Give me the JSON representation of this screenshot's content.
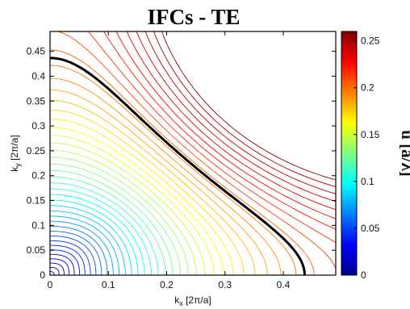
{
  "chart_data": {
    "type": "contour",
    "title": "IFCs - TE",
    "xlabel": {
      "main": "k",
      "sub": "x",
      "unit": " [2π/a]"
    },
    "ylabel": {
      "main": "k",
      "sub": "y",
      "unit": " [2π/a]"
    },
    "xlim": [
      0,
      0.49
    ],
    "ylim": [
      0,
      0.49
    ],
    "xticks": [
      "0",
      "0.1",
      "0.2",
      "0.3",
      "0.4"
    ],
    "yticks": [
      "0",
      "0.05",
      "0.1",
      "0.15",
      "0.2",
      "0.25",
      "0.3",
      "0.35",
      "0.4",
      "0.45"
    ],
    "colorbar": {
      "label": "u [a/λ]",
      "range": [
        0,
        0.26
      ],
      "ticks": [
        "0",
        "0.05",
        "0.1",
        "0.15",
        "0.2",
        "0.25"
      ],
      "colormap": "jet"
    },
    "contour_levels": {
      "start": 0.005,
      "step": 0.006,
      "end": 0.257
    },
    "highlighted_contour": {
      "level": 0.2,
      "color": "#000000",
      "x_range": [
        0.275,
        0.49
      ]
    },
    "grid": false
  }
}
